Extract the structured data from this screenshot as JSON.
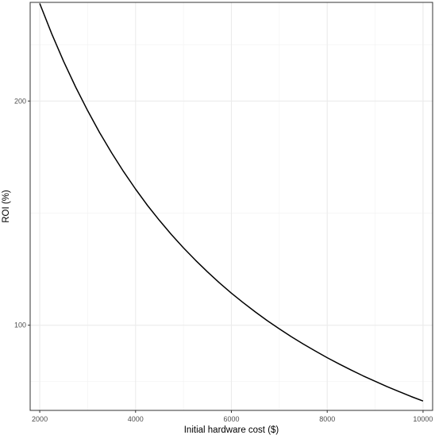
{
  "chart_data": {
    "type": "line",
    "title": "",
    "xlabel": "Initial hardware cost ($)",
    "ylabel": "ROI (%)",
    "xlim": [
      1800,
      10200
    ],
    "ylim": [
      62,
      244
    ],
    "x_major_ticks": [
      2000,
      4000,
      6000,
      8000,
      10000
    ],
    "x_tick_labels": [
      "2000",
      "4000",
      "6000",
      "8000",
      "10000"
    ],
    "x_minor_grid": [
      3000,
      5000,
      7000,
      9000
    ],
    "y_major_ticks": [
      100,
      200
    ],
    "y_tick_labels": [
      "100",
      "200"
    ],
    "y_minor_grid": [
      75,
      150,
      225
    ],
    "grid": true,
    "legend": "none",
    "series": [
      {
        "color": "#000000",
        "x": [
          2000,
          2250,
          2500,
          2750,
          3000,
          3250,
          3500,
          3750,
          4000,
          4250,
          4500,
          4750,
          5000,
          5250,
          5500,
          5750,
          6000,
          6250,
          6500,
          6750,
          7000,
          7250,
          7500,
          7750,
          8000,
          8250,
          8500,
          8750,
          9000,
          9250,
          9500,
          9750,
          10000
        ],
        "y": [
          243.5,
          230.0,
          217.6,
          206.2,
          195.7,
          185.9,
          176.9,
          168.5,
          160.7,
          153.4,
          146.7,
          140.4,
          134.5,
          129.0,
          123.8,
          118.9,
          114.3,
          110.0,
          105.9,
          102.0,
          98.4,
          94.9,
          91.6,
          88.5,
          85.5,
          82.7,
          80.0,
          77.4,
          75.0,
          72.6,
          70.4,
          68.2,
          66.2
        ]
      }
    ]
  }
}
